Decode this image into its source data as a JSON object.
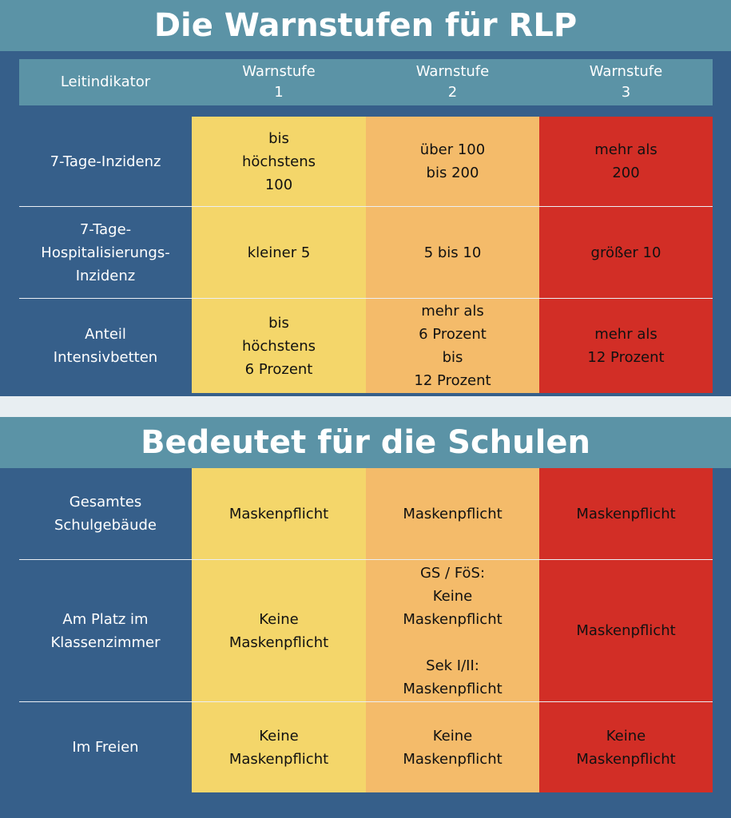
{
  "title": "Die Warnstufen für RLP",
  "subtitle": "Bedeutet für die Schulen",
  "header": {
    "indicator": "Leitindikator",
    "levels": [
      "Warnstufe\n1",
      "Warnstufe\n2",
      "Warnstufe\n3"
    ]
  },
  "indicators": [
    {
      "label": "7-Tage-Inzidenz",
      "values": [
        "bis\nhöchstens\n100",
        "über 100\nbis 200",
        "mehr als\n200"
      ]
    },
    {
      "label": "7-Tage-\nHospitalisierungs-\nInzidenz",
      "values": [
        "kleiner 5",
        "5 bis 10",
        "größer 10"
      ]
    },
    {
      "label": "Anteil\nIntensivbetten",
      "values": [
        "bis\nhöchstens\n6 Prozent",
        "mehr als\n6 Prozent\nbis\n12 Prozent",
        "mehr als\n12 Prozent"
      ]
    }
  ],
  "schools": [
    {
      "label": "Gesamtes\nSchulgebäude",
      "values": [
        "Maskenpflicht",
        "Maskenpflicht",
        "Maskenpflicht"
      ]
    },
    {
      "label": "Am Platz im\nKlassenzimmer",
      "values": [
        "Keine\nMaskenpflicht",
        "GS / FöS:\nKeine\nMaskenpflicht\n\nSek I/II:\nMaskenpflicht",
        "Maskenpflicht"
      ]
    },
    {
      "label": "Im Freien",
      "values": [
        "Keine\nMaskenpflicht",
        "Keine\nMaskenpflicht",
        "Keine\nMaskenpflicht"
      ]
    }
  ],
  "colors": {
    "level1": "#f4d66a",
    "level2": "#f4bb6a",
    "level3": "#d22e26",
    "panel": "#365f8a",
    "header": "#5b93a6"
  }
}
